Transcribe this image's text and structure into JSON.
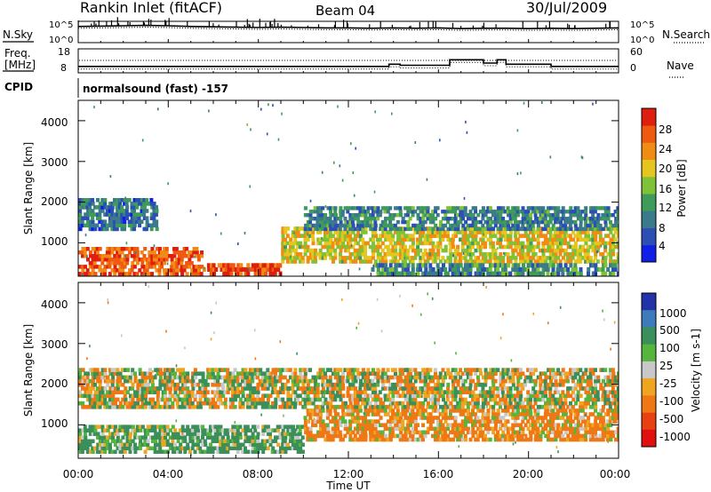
{
  "header": {
    "station": "Rankin Inlet (fitACF)",
    "beam": "Beam 04",
    "date": "30/Jul/2009"
  },
  "status_panels": {
    "nsky": {
      "label": "N.Sky",
      "ticks": [
        "10^5",
        "10^0"
      ]
    },
    "nsearch": {
      "label": "N.Search",
      "ticks": [
        "10^5",
        "10^0"
      ]
    },
    "freq": {
      "label_lines": [
        "Freq.",
        "[MHz]"
      ],
      "ticks": [
        "18",
        "8"
      ]
    },
    "nave": {
      "label": "Nave",
      "ticks": [
        "60",
        "0"
      ]
    },
    "cpid": {
      "label": "CPID",
      "value": "normalsound (fast) -157"
    }
  },
  "time_axis": {
    "label": "Time UT",
    "ticks": [
      "00:00",
      "04:00",
      "08:00",
      "12:00",
      "16:00",
      "20:00",
      "00:00"
    ]
  },
  "power_panel": {
    "ylabel": "Slant Range [km]",
    "yticks": [
      "1000",
      "2000",
      "3000",
      "4000"
    ],
    "colorbar_label": "Power [dB]",
    "colorbar_ticks": [
      "4",
      "8",
      "12",
      "16",
      "20",
      "24",
      "28"
    ]
  },
  "velocity_panel": {
    "ylabel": "Slant Range [km]",
    "yticks": [
      "1000",
      "2000",
      "3000",
      "4000"
    ],
    "colorbar_label": "Velocity [m s-1]",
    "colorbar_ticks": [
      "1000",
      "500",
      "100",
      "25",
      "-25",
      "-100",
      "-500",
      "-1000"
    ]
  },
  "colors": {
    "power_scale": [
      "#0f1fe6",
      "#2c4fb6",
      "#3a7a8a",
      "#3e9b5a",
      "#7fc238",
      "#e4c61e",
      "#f08c14",
      "#ee5a10",
      "#e01e10"
    ],
    "velocity_scale": [
      "#2233aa",
      "#3e7bbb",
      "#3a8f5a",
      "#55b53c",
      "#c8c8c8",
      "#f0a520",
      "#f07814",
      "#e84010",
      "#e01010"
    ]
  },
  "chart_data": [
    {
      "type": "heatmap",
      "title": "Power",
      "xlabel": "Time UT",
      "ylabel": "Slant Range [km]",
      "xlim": [
        "00:00",
        "24:00"
      ],
      "ylim": [
        180,
        4500
      ],
      "colorbar": {
        "label": "Power [dB]",
        "range": [
          0,
          30
        ]
      },
      "regions": [
        {
          "t": [
            0.0,
            5.5
          ],
          "range_km": [
            200,
            900
          ],
          "value_db": 25
        },
        {
          "t": [
            5.5,
            9.0
          ],
          "range_km": [
            200,
            500
          ],
          "value_db": 26
        },
        {
          "t": [
            0.0,
            3.5
          ],
          "range_km": [
            1300,
            2100
          ],
          "value_db": 8
        },
        {
          "t": [
            9.0,
            24.0
          ],
          "range_km": [
            500,
            1400
          ],
          "value_db": 18
        },
        {
          "t": [
            10.0,
            24.0
          ],
          "range_km": [
            1300,
            1900
          ],
          "value_db": 9
        },
        {
          "t": [
            13.0,
            24.0
          ],
          "range_km": [
            200,
            500
          ],
          "value_db": 10
        }
      ]
    },
    {
      "type": "heatmap",
      "title": "Velocity",
      "xlabel": "Time UT",
      "ylabel": "Slant Range [km]",
      "xlim": [
        "00:00",
        "24:00"
      ],
      "ylim": [
        180,
        4500
      ],
      "colorbar": {
        "label": "Velocity [m s-1]",
        "range": [
          -1000,
          1000
        ]
      },
      "regions": [
        {
          "t": [
            0.0,
            10.0
          ],
          "range_km": [
            300,
            1000
          ],
          "value_ms": 150
        },
        {
          "t": [
            10.0,
            24.0
          ],
          "range_km": [
            600,
            1400
          ],
          "value_ms": -150
        },
        {
          "t": [
            0.0,
            24.0
          ],
          "range_km": [
            1400,
            2400
          ],
          "value_ms": 0
        }
      ]
    },
    {
      "type": "line",
      "title": "N.Sky",
      "values_log10": [
        4.3,
        4.4,
        4.5,
        4.6,
        4.5,
        4.3,
        4.2,
        4.1,
        4.0,
        4.1,
        4.0,
        3.9,
        3.9,
        3.8,
        3.9,
        3.8,
        3.9,
        3.7,
        3.8,
        3.8,
        3.7,
        3.8,
        3.7,
        3.8,
        3.9
      ]
    },
    {
      "type": "line",
      "title": "Freq.",
      "unit": "MHz",
      "segments": [
        {
          "t": [
            0.0,
            7.5
          ],
          "value": 10.5
        },
        {
          "t": [
            7.5,
            13.8
          ],
          "value": 10.5
        },
        {
          "t": [
            13.8,
            14.3
          ],
          "value": 11.5
        },
        {
          "t": [
            14.3,
            16.5
          ],
          "value": 11.0
        },
        {
          "t": [
            16.5,
            17.0
          ],
          "value": 13.5
        },
        {
          "t": [
            17.0,
            18.0
          ],
          "value": 13.5
        },
        {
          "t": [
            18.0,
            18.6
          ],
          "value": 12.0
        },
        {
          "t": [
            18.6,
            19.0
          ],
          "value": 13.5
        },
        {
          "t": [
            19.0,
            21.0
          ],
          "value": 11.5
        },
        {
          "t": [
            21.0,
            24.0
          ],
          "value": 10.5
        }
      ]
    }
  ]
}
